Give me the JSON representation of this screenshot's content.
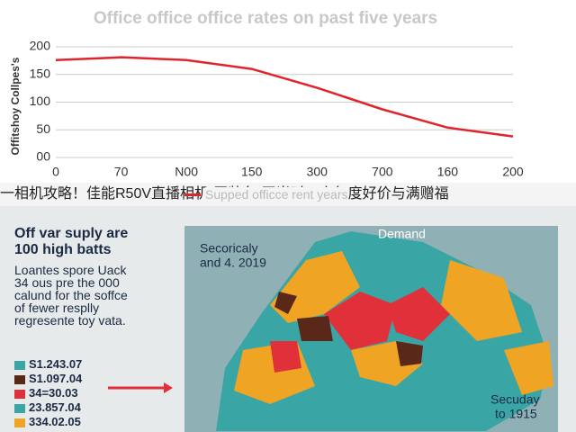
{
  "chart_data": {
    "type": "line",
    "title": "Office office office rates on past five years",
    "y_label": "Offitshoy Collpes's",
    "categories": [
      "0",
      "70",
      "N00",
      "150",
      "300",
      "700",
      "160",
      "200"
    ],
    "series": [
      {
        "name": "Supped officce rent years",
        "color": "#e0242c",
        "values": [
          176,
          181,
          176,
          160,
          126,
          87,
          54,
          38
        ]
      }
    ],
    "ylim": [
      0,
      200
    ],
    "yticks": [
      {
        "value": 0,
        "label": "00"
      },
      50,
      100,
      150,
      200
    ],
    "grid": true
  },
  "banner": "一相机攻略！佳能R50V直播相机“囤装备”正当时，享年度好价与满赠福",
  "panel": {
    "heading": [
      "Off var suply are",
      "100 high batts"
    ],
    "body": [
      "Loantes spore Uack",
      "34 ous pre the 000",
      "calund for the soffce",
      "of fewer resplly",
      "regresente toy vata."
    ],
    "legend": [
      {
        "label": "S1.243.07",
        "color": "#3aa5a5"
      },
      {
        "label": "S1.097.04",
        "color": "#5a2818"
      },
      {
        "label": "34=30.03",
        "color": "#e0303a"
      },
      {
        "label": "23.857.04",
        "color": "#3aa5a5"
      },
      {
        "label": "334.02.05",
        "color": "#f0a424"
      }
    ],
    "map_labels": [
      "Secoricaly",
      "and 4. 2019",
      "Demand",
      "Secuday",
      "to 1915"
    ]
  }
}
